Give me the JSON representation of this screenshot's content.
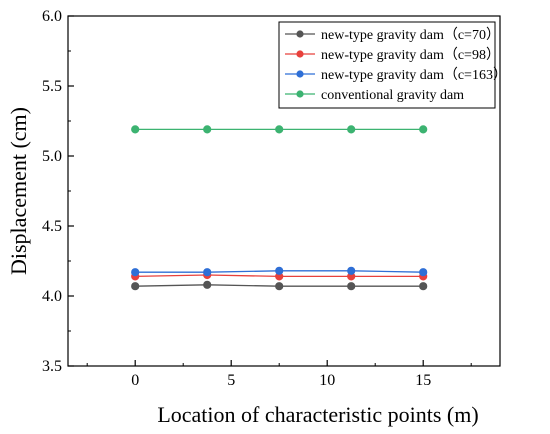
{
  "chart_data": {
    "type": "line",
    "xlabel": "Location of characteristic points (m)",
    "ylabel": "Displacement (cm)",
    "xlim": [
      -3.5,
      19
    ],
    "ylim": [
      3.5,
      6.0
    ],
    "xticks": [
      0,
      5,
      10,
      15
    ],
    "xtick_labels": [
      "0",
      "5",
      "10",
      "15"
    ],
    "yticks": [
      3.5,
      4.0,
      4.5,
      5.0,
      5.5,
      6.0
    ],
    "ytick_labels": [
      "3.5",
      "4.0",
      "4.5",
      "5.0",
      "5.5",
      "6.0"
    ],
    "grid": false,
    "legend_position": "top-right",
    "x": [
      0,
      3.75,
      7.5,
      11.25,
      15
    ],
    "series": [
      {
        "name": "new-type gravity dam（c=70）",
        "color": "#555555",
        "marker": "circle",
        "values": [
          4.07,
          4.08,
          4.07,
          4.07,
          4.07
        ]
      },
      {
        "name": "new-type gravity dam（c=98）",
        "color": "#e8413c",
        "marker": "circle",
        "values": [
          4.14,
          4.15,
          4.14,
          4.14,
          4.14
        ]
      },
      {
        "name": "new-type gravity dam（c=163）",
        "color": "#2f6fd6",
        "marker": "circle",
        "values": [
          4.17,
          4.17,
          4.18,
          4.18,
          4.17
        ]
      },
      {
        "name": "conventional gravity dam",
        "color": "#3cb371",
        "marker": "circle",
        "values": [
          5.19,
          5.19,
          5.19,
          5.19,
          5.19
        ]
      }
    ]
  }
}
